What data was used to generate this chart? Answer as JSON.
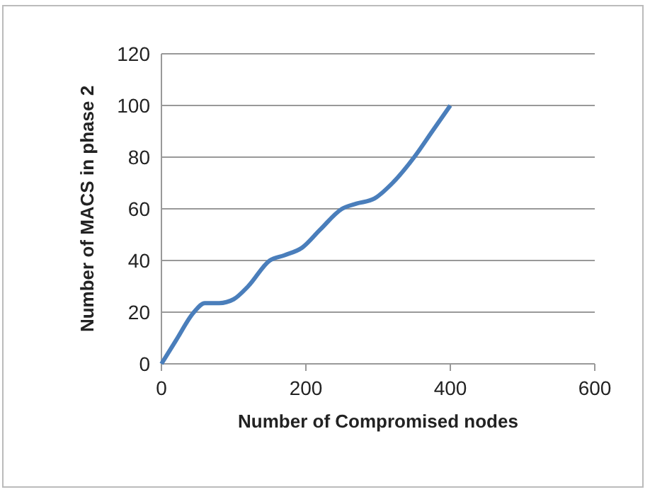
{
  "chart_data": {
    "type": "line",
    "xlabel": "Number of Compromised nodes",
    "ylabel": "Number of MACS in  phase 2",
    "x": [
      0,
      20,
      45,
      60,
      80,
      100,
      120,
      150,
      170,
      195,
      220,
      250,
      270,
      295,
      320,
      350,
      375,
      400
    ],
    "series": [
      {
        "color": "#4a7ebb",
        "values": [
          0,
          9,
          20,
          23.5,
          23.5,
          25,
          30,
          40,
          42,
          45,
          52,
          60,
          62,
          64,
          70,
          80,
          90,
          100
        ]
      }
    ],
    "xlim": [
      0,
      600
    ],
    "xticks": [
      0,
      200,
      400,
      600
    ],
    "ylim": [
      0,
      120
    ],
    "yticks": [
      0,
      20,
      40,
      60,
      80,
      100,
      120
    ],
    "grid": "y"
  }
}
